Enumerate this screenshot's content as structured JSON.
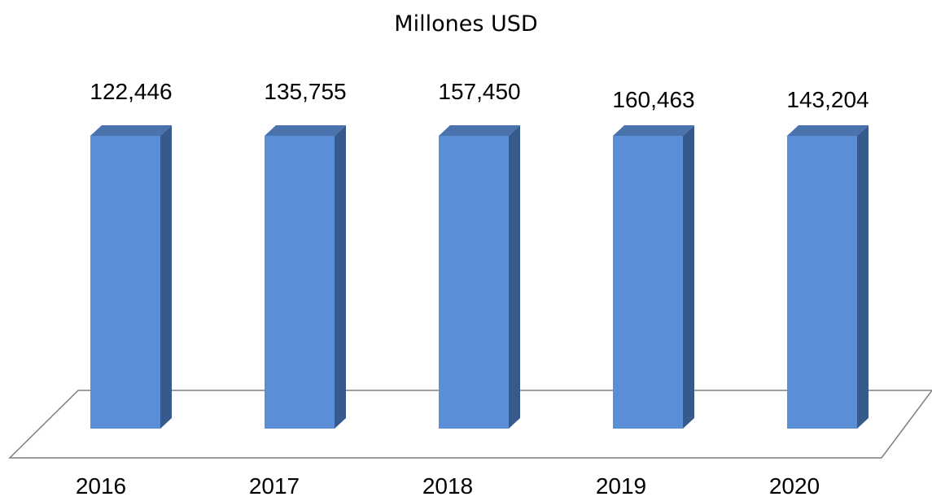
{
  "chart_data": {
    "type": "bar",
    "title": "Millones USD",
    "categories": [
      "2016",
      "2017",
      "2018",
      "2019",
      "2020"
    ],
    "values": [
      122446,
      135755,
      157450,
      160463,
      143204
    ],
    "data_labels": [
      "122,446",
      "135,755",
      "157,450",
      "160,463",
      "143,204"
    ],
    "style": "3d-column",
    "grid": false,
    "legend": "none",
    "colors": {
      "bar_front": "#5a8fd7",
      "bar_side": "#375a8c",
      "bar_top": "#4a73ad",
      "floor_line": "#7f7f7f"
    }
  }
}
